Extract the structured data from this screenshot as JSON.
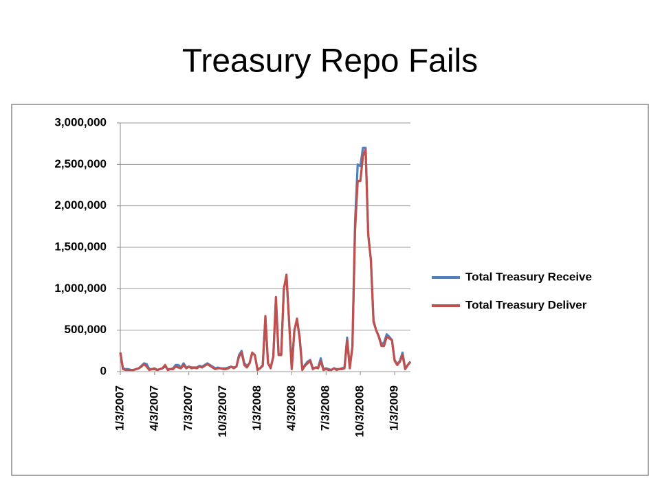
{
  "chart_data": {
    "type": "line",
    "title": "Treasury Repo Fails",
    "categories": [
      "1/3/2007",
      null,
      null,
      null,
      null,
      null,
      null,
      null,
      null,
      null,
      null,
      null,
      null,
      "4/3/2007",
      null,
      null,
      null,
      null,
      null,
      null,
      null,
      null,
      null,
      null,
      null,
      null,
      "7/3/2007",
      null,
      null,
      null,
      null,
      null,
      null,
      null,
      null,
      null,
      null,
      null,
      null,
      "10/3/2007",
      null,
      null,
      null,
      null,
      null,
      null,
      null,
      null,
      null,
      null,
      null,
      null,
      "1/3/2008",
      null,
      null,
      null,
      null,
      null,
      null,
      null,
      null,
      null,
      null,
      null,
      null,
      "4/3/2008",
      null,
      null,
      null,
      null,
      null,
      null,
      null,
      null,
      null,
      null,
      null,
      null,
      "7/3/2008",
      null,
      null,
      null,
      null,
      null,
      null,
      null,
      null,
      null,
      null,
      null,
      null,
      "10/3/2008",
      null,
      null,
      null,
      null,
      null,
      null,
      null,
      null,
      null,
      null,
      null,
      null,
      "1/3/2009",
      null,
      null,
      null,
      null,
      null,
      null
    ],
    "series": [
      {
        "name": "Total Treasury Receive",
        "color": "#4f81bd",
        "values": [
          230000,
          40000,
          30000,
          30000,
          20000,
          20000,
          30000,
          40000,
          70000,
          100000,
          90000,
          30000,
          30000,
          40000,
          20000,
          30000,
          40000,
          60000,
          30000,
          30000,
          40000,
          80000,
          80000,
          50000,
          100000,
          50000,
          60000,
          50000,
          50000,
          50000,
          70000,
          60000,
          80000,
          100000,
          80000,
          60000,
          40000,
          50000,
          40000,
          40000,
          40000,
          50000,
          60000,
          50000,
          60000,
          200000,
          250000,
          100000,
          70000,
          100000,
          220000,
          200000,
          30000,
          40000,
          80000,
          650000,
          100000,
          50000,
          180000,
          880000,
          220000,
          200000,
          1000000,
          1150000,
          600000,
          40000,
          500000,
          620000,
          420000,
          30000,
          80000,
          120000,
          140000,
          40000,
          50000,
          50000,
          160000,
          30000,
          40000,
          30000,
          20000,
          40000,
          30000,
          30000,
          40000,
          50000,
          410000,
          50000,
          300000,
          1800000,
          2500000,
          2480000,
          2700000,
          2700000,
          1650000,
          1350000,
          620000,
          500000,
          430000,
          330000,
          350000,
          450000,
          420000,
          380000,
          140000,
          90000,
          130000,
          230000,
          40000,
          80000,
          120000
        ]
      },
      {
        "name": "Total Treasury Deliver",
        "color": "#c0504d",
        "values": [
          230000,
          30000,
          20000,
          20000,
          20000,
          20000,
          30000,
          40000,
          60000,
          90000,
          60000,
          20000,
          30000,
          30000,
          20000,
          30000,
          40000,
          80000,
          20000,
          30000,
          30000,
          60000,
          50000,
          40000,
          80000,
          40000,
          60000,
          40000,
          50000,
          40000,
          60000,
          50000,
          70000,
          90000,
          70000,
          50000,
          30000,
          40000,
          40000,
          30000,
          30000,
          40000,
          60000,
          40000,
          60000,
          180000,
          230000,
          80000,
          50000,
          100000,
          230000,
          200000,
          20000,
          40000,
          70000,
          670000,
          100000,
          40000,
          180000,
          900000,
          200000,
          200000,
          1000000,
          1170000,
          600000,
          30000,
          500000,
          640000,
          400000,
          20000,
          70000,
          100000,
          130000,
          30000,
          50000,
          40000,
          130000,
          20000,
          30000,
          20000,
          20000,
          40000,
          20000,
          30000,
          30000,
          40000,
          380000,
          40000,
          300000,
          1700000,
          2300000,
          2300000,
          2600000,
          2680000,
          1650000,
          1350000,
          600000,
          500000,
          420000,
          310000,
          310000,
          420000,
          400000,
          380000,
          130000,
          80000,
          120000,
          200000,
          30000,
          80000,
          120000
        ]
      }
    ],
    "ylim": [
      0,
      3000000
    ],
    "yticks": [
      0,
      {
        "value": 500000,
        "label": "500,000"
      },
      {
        "value": 1000000,
        "label": "1,000,000"
      },
      {
        "value": 1500000,
        "label": "1,500,000"
      },
      {
        "value": 2000000,
        "label": "2,000,000"
      },
      {
        "value": 2500000,
        "label": "2,500,000"
      },
      {
        "value": 3000000,
        "label": "3,000,000"
      }
    ],
    "grid": true,
    "legend": "right"
  }
}
